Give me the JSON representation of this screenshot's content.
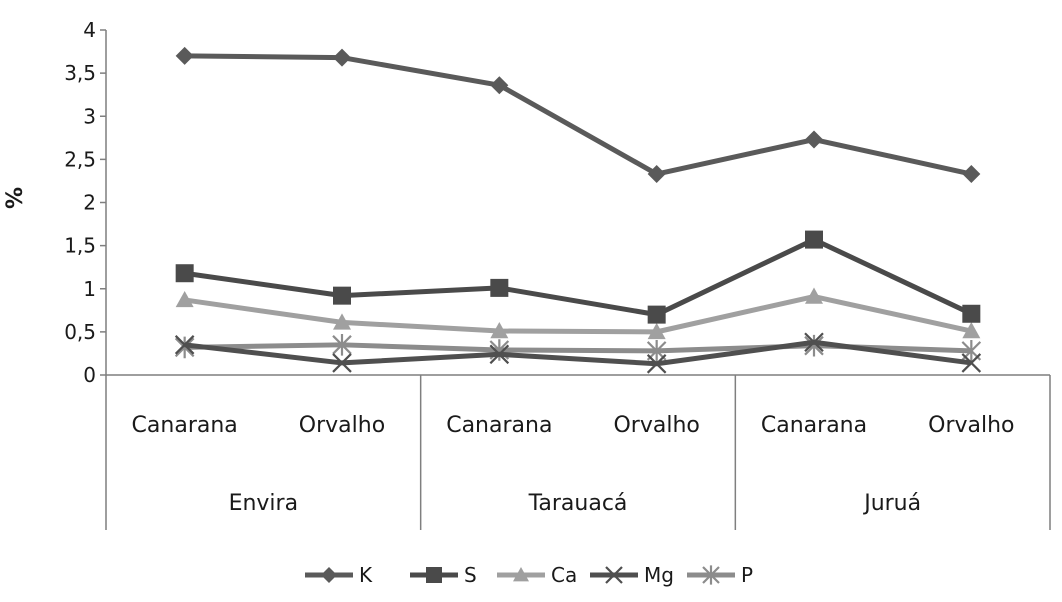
{
  "chart_data": {
    "type": "line",
    "ylabel": "%",
    "ylim": [
      0,
      4
    ],
    "yticks": [
      "0",
      "0,5",
      "1",
      "1,5",
      "2",
      "2,5",
      "3",
      "3,5",
      "4"
    ],
    "ytick_values": [
      0,
      0.5,
      1,
      1.5,
      2,
      2.5,
      3,
      3.5,
      4
    ],
    "categories": [
      "Canarana",
      "Orvalho",
      "Canarana",
      "Orvalho",
      "Canarana",
      "Orvalho"
    ],
    "groups": [
      "Envira",
      "Tarauacá",
      "Juruá"
    ],
    "legend_position": "bottom",
    "grid": false,
    "series": [
      {
        "name": "K",
        "marker": "diamond",
        "color": "#5a5a5a",
        "values": [
          3.7,
          3.68,
          3.36,
          2.33,
          2.73,
          2.33
        ]
      },
      {
        "name": "S",
        "marker": "square",
        "color": "#4a4a4a",
        "values": [
          1.18,
          0.92,
          1.01,
          0.7,
          1.57,
          0.71
        ]
      },
      {
        "name": "Ca",
        "marker": "triangle",
        "color": "#a0a0a0",
        "values": [
          0.87,
          0.61,
          0.51,
          0.5,
          0.91,
          0.51
        ]
      },
      {
        "name": "Mg",
        "marker": "x",
        "color": "#4f4f4f",
        "values": [
          0.35,
          0.14,
          0.24,
          0.13,
          0.38,
          0.14
        ]
      },
      {
        "name": "P",
        "marker": "star",
        "color": "#8c8c8c",
        "values": [
          0.32,
          0.35,
          0.29,
          0.28,
          0.34,
          0.28
        ]
      }
    ]
  }
}
